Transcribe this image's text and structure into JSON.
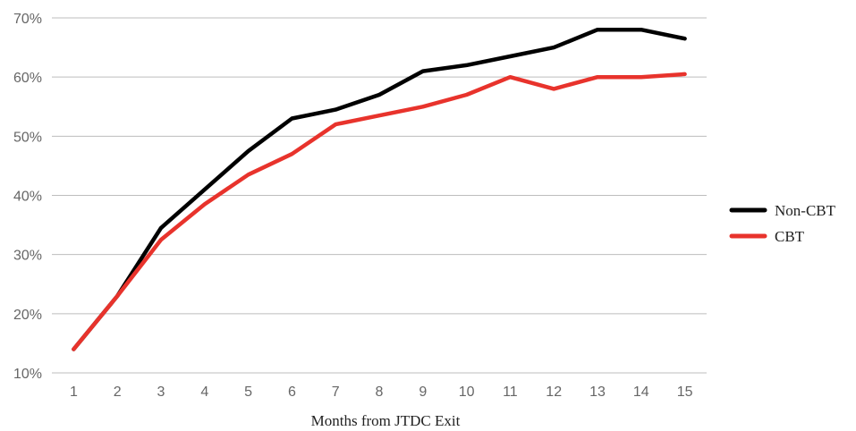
{
  "chart_data": {
    "type": "line",
    "xlabel": "Months from JTDC Exit",
    "ylabel": "",
    "x": [
      1,
      2,
      3,
      4,
      5,
      6,
      7,
      8,
      9,
      10,
      11,
      12,
      13,
      14,
      15
    ],
    "x_tick_labels": [
      "1",
      "2",
      "3",
      "4",
      "5",
      "6",
      "7",
      "8",
      "9",
      "10",
      "11",
      "12",
      "13",
      "14",
      "15"
    ],
    "y_tick_labels": [
      "10%",
      "20%",
      "30%",
      "40%",
      "50%",
      "60%",
      "70%"
    ],
    "ylim": [
      10,
      70
    ],
    "grid": "horizontal",
    "legend_position": "right",
    "series": [
      {
        "name": "Non-CBT",
        "color": "#000000",
        "values": [
          14,
          23,
          34.5,
          41,
          47.5,
          53,
          54.5,
          57,
          61,
          62,
          63.5,
          65,
          68,
          68,
          66.5
        ]
      },
      {
        "name": "CBT",
        "color": "#e8332c",
        "values": [
          14,
          23,
          32.5,
          38.5,
          43.5,
          47,
          52,
          53.5,
          55,
          57,
          60,
          58,
          60,
          60,
          60.5
        ]
      }
    ]
  }
}
